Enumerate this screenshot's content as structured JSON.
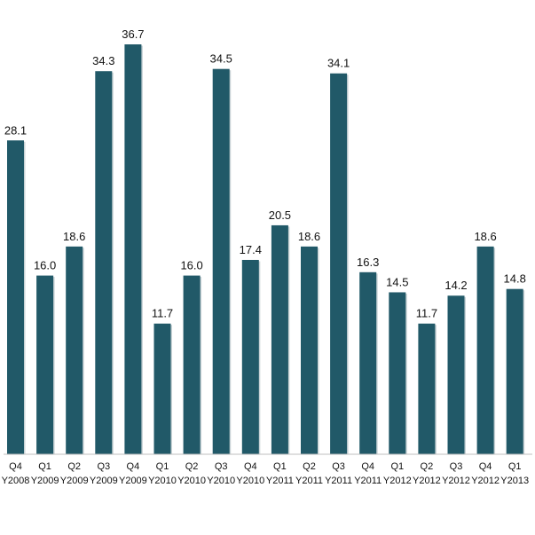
{
  "chart_data": {
    "type": "bar",
    "title": "",
    "xlabel": "",
    "ylabel": "",
    "categories": [
      "Q4 Y2008",
      "Q1 Y2009",
      "Q2 Y2009",
      "Q3 Y2009",
      "Q4 Y2009",
      "Q1 Y2010",
      "Q2 Y2010",
      "Q3 Y2010",
      "Q4 Y2010",
      "Q1 Y2011",
      "Q2 Y2011",
      "Q3 Y2011",
      "Q4 Y2011",
      "Q1 Y2012",
      "Q2 Y2012",
      "Q3 Y2012",
      "Q4 Y2012",
      "Q1 Y2013"
    ],
    "category_lines": [
      [
        "Q4",
        "Y2008"
      ],
      [
        "Q1",
        "Y2009"
      ],
      [
        "Q2",
        "Y2009"
      ],
      [
        "Q3",
        "Y2009"
      ],
      [
        "Q4",
        "Y2009"
      ],
      [
        "Q1",
        "Y2010"
      ],
      [
        "Q2",
        "Y2010"
      ],
      [
        "Q3",
        "Y2010"
      ],
      [
        "Q4",
        "Y2010"
      ],
      [
        "Q1",
        "Y2011"
      ],
      [
        "Q2",
        "Y2011"
      ],
      [
        "Q3",
        "Y2011"
      ],
      [
        "Q4",
        "Y2011"
      ],
      [
        "Q1",
        "Y2012"
      ],
      [
        "Q2",
        "Y2012"
      ],
      [
        "Q3",
        "Y2012"
      ],
      [
        "Q4",
        "Y2012"
      ],
      [
        "Q1",
        "Y2013"
      ]
    ],
    "values": [
      28.1,
      16.0,
      18.6,
      34.3,
      36.7,
      11.7,
      16.0,
      34.5,
      17.4,
      20.5,
      18.6,
      34.1,
      16.3,
      14.5,
      11.7,
      14.2,
      18.6,
      14.8
    ],
    "value_labels": [
      "28.1",
      "16.0",
      "18.6",
      "34.3",
      "36.7",
      "11.7",
      "16.0",
      "34.5",
      "17.4",
      "20.5",
      "18.6",
      "34.1",
      "16.3",
      "14.5",
      "11.7",
      "14.2",
      "18.6",
      "14.8"
    ],
    "ylim": [
      0,
      36.7
    ],
    "grid": false,
    "legend": "none",
    "colors": {
      "bar": "#215968",
      "bar_shadow": "#c9d3d6",
      "axis": "#bfbfbf",
      "text": "#111111"
    }
  }
}
